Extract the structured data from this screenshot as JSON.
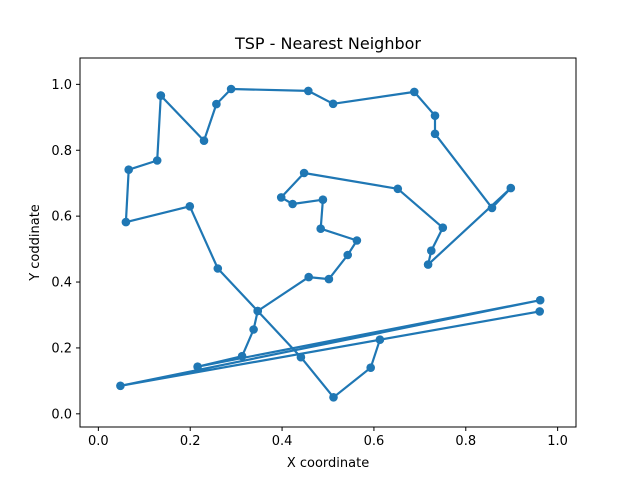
{
  "chart_data": {
    "type": "line",
    "title": "TSP - Nearest Neighbor",
    "xlabel": "X coordinate",
    "ylabel": "Y coddinate",
    "xlim": [
      -0.04,
      1.04
    ],
    "ylim": [
      -0.04,
      1.08
    ],
    "xticks": [
      0.0,
      0.2,
      0.4,
      0.6,
      0.8,
      1.0
    ],
    "xtick_labels": [
      "0.0",
      "0.2",
      "0.4",
      "0.6",
      "0.8",
      "1.0"
    ],
    "yticks": [
      0.0,
      0.2,
      0.4,
      0.6,
      0.8,
      1.0
    ],
    "ytick_labels": [
      "0.0",
      "0.2",
      "0.4",
      "0.6",
      "0.8",
      "1.0"
    ],
    "grid": false,
    "color": "#1f77b4",
    "series": [
      {
        "x": [
          0.136,
          0.128,
          0.066,
          0.06,
          0.199,
          0.26,
          0.347,
          0.441,
          0.512,
          0.593,
          0.613,
          0.961,
          0.048,
          0.962,
          0.216,
          0.313,
          0.338,
          0.347,
          0.458,
          0.502,
          0.543,
          0.563,
          0.484,
          0.489,
          0.423,
          0.398,
          0.448,
          0.652,
          0.75,
          0.725,
          0.718,
          0.898,
          0.857,
          0.733,
          0.733,
          0.688,
          0.511,
          0.457,
          0.289,
          0.257,
          0.23,
          0.136
        ],
        "y": [
          0.966,
          0.769,
          0.741,
          0.582,
          0.63,
          0.441,
          0.312,
          0.172,
          0.05,
          0.14,
          0.225,
          0.311,
          0.085,
          0.345,
          0.143,
          0.175,
          0.256,
          0.312,
          0.415,
          0.409,
          0.482,
          0.526,
          0.562,
          0.65,
          0.637,
          0.657,
          0.731,
          0.683,
          0.565,
          0.495,
          0.453,
          0.685,
          0.625,
          0.85,
          0.905,
          0.977,
          0.941,
          0.98,
          0.986,
          0.94,
          0.829,
          0.966
        ]
      }
    ]
  }
}
